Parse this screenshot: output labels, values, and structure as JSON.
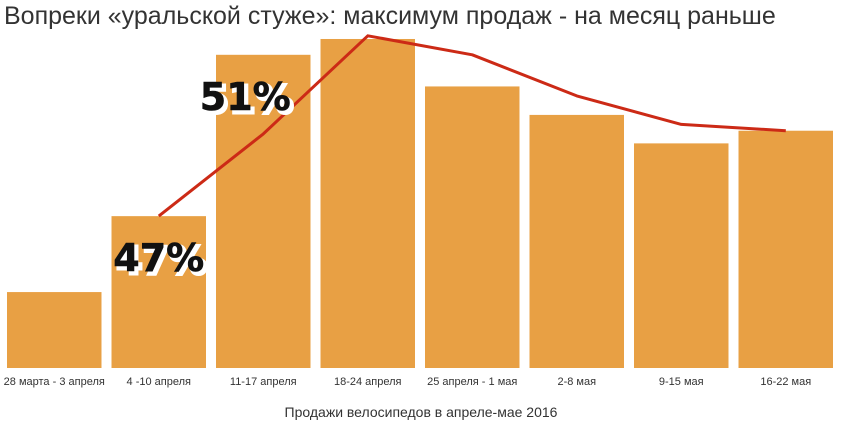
{
  "chart_data": {
    "type": "bar",
    "title": "Вопреки «уральской стуже»: максимум продаж - на месяц раньше",
    "xlabel": "Продажи велосипедов в апреле-мае 2016",
    "ylabel": "",
    "categories": [
      "28 марта - 3 апреля",
      "4 -10 апреля",
      "11-17 апреля",
      "18-24 апреля",
      "25 апреля - 1 мая",
      "2-8 мая",
      "9-15 мая",
      "16-22 мая"
    ],
    "series": [
      {
        "type": "bar",
        "color": "#E8A044",
        "values": [
          24,
          48,
          99,
          104,
          89,
          80,
          71,
          75
        ]
      },
      {
        "type": "line",
        "color": "#CC2A16",
        "values": [
          null,
          48,
          74,
          105,
          99,
          86,
          77,
          75
        ]
      }
    ],
    "annotations": [
      {
        "text": "47%",
        "category_index": 1
      },
      {
        "text": "51%",
        "category_index": 2
      }
    ],
    "ylim": [
      0,
      110
    ],
    "grid": false,
    "legend": "none"
  }
}
